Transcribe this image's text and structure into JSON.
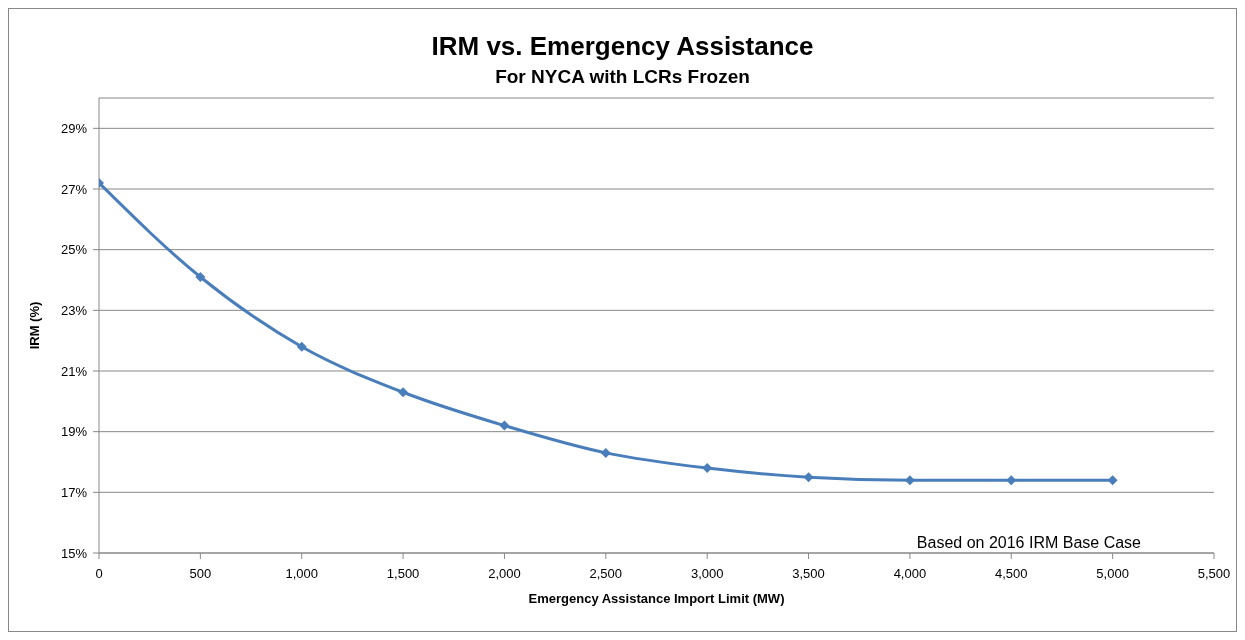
{
  "chart_data": {
    "type": "line",
    "title": "IRM vs. Emergency Assistance",
    "subtitle": "For NYCA with LCRs Frozen",
    "xlabel": "Emergency Assistance  Import Limit (MW)",
    "ylabel": "IRM (%)",
    "x": [
      0,
      500,
      1000,
      1500,
      2000,
      2500,
      3000,
      3500,
      4000,
      4500,
      5000
    ],
    "series": [
      {
        "color": "#4a7ebb",
        "values": [
          27.2,
          24.1,
          21.8,
          20.3,
          19.2,
          18.3,
          17.8,
          17.5,
          17.4,
          17.4,
          17.4
        ]
      }
    ],
    "xlim": [
      0,
      5500
    ],
    "xticks": [
      0,
      500,
      {
        "value": 1000,
        "label": "1,000"
      },
      {
        "value": 1500,
        "label": "1,500"
      },
      {
        "value": 2000,
        "label": "2,000"
      },
      {
        "value": 2500,
        "label": "2,500"
      },
      {
        "value": 3000,
        "label": "3,000"
      },
      {
        "value": 3500,
        "label": "3,500"
      },
      {
        "value": 4000,
        "label": "4,000"
      },
      {
        "value": 4500,
        "label": "4,500"
      },
      {
        "value": 5000,
        "label": "5,000"
      },
      {
        "value": 5500,
        "label": "5,500"
      }
    ],
    "ylim": [
      15,
      30
    ],
    "yticks": [
      {
        "value": 15,
        "label": "15%"
      },
      {
        "value": 17,
        "label": "17%"
      },
      {
        "value": 19,
        "label": "19%"
      },
      {
        "value": 21,
        "label": "21%"
      },
      {
        "value": 23,
        "label": "23%"
      },
      {
        "value": 25,
        "label": "25%"
      },
      {
        "value": 27,
        "label": "27%"
      },
      {
        "value": 29,
        "label": "29%"
      }
    ],
    "grid": "y",
    "marker": "diamond",
    "line_style": "solid",
    "annotations": [
      "Based on 2016 IRM Base Case"
    ]
  }
}
